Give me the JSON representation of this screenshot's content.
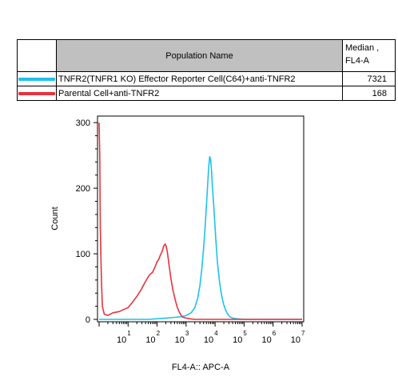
{
  "legend": {
    "header_name": "Population Name",
    "header_median_line1": "Median ,",
    "header_median_line2": "FL4-A",
    "rows": [
      {
        "name": "TNFR2(TNFR1 KO) Effector Reporter Cell(C64)+anti-TNFR2",
        "median": "7321",
        "color": "#1ec1ea"
      },
      {
        "name": "Parental Cell+anti-TNFR2",
        "median": "168",
        "color": "#e8323c"
      }
    ]
  },
  "chart_data": {
    "type": "line",
    "xlabel": "FL4-A:: APC-A",
    "ylabel": "Count",
    "x_scale": "log",
    "xlim": [
      1,
      10000000
    ],
    "ylim": [
      0,
      310
    ],
    "x_tick_labels": [
      {
        "base": "10",
        "exp": "1"
      },
      {
        "base": "10",
        "exp": "2"
      },
      {
        "base": "10",
        "exp": "3"
      },
      {
        "base": "10",
        "exp": "4"
      },
      {
        "base": "10",
        "exp": "5"
      },
      {
        "base": "10",
        "exp": "6"
      },
      {
        "base": "10",
        "exp": "7"
      }
    ],
    "y_ticks": [
      0,
      100,
      200,
      300
    ],
    "series": [
      {
        "name": "TNFR2(TNFR1 KO) Effector Reporter Cell(C64)+anti-TNFR2",
        "color": "#1ec1ea",
        "x": [
          1,
          50,
          200,
          400,
          700,
          1000,
          1500,
          2000,
          2500,
          3000,
          3500,
          4000,
          4500,
          5000,
          5500,
          6000,
          6500,
          7000,
          7500,
          8000,
          9000,
          10000,
          11000,
          12000,
          14000,
          16000,
          18000,
          20000,
          23000,
          27000,
          32000,
          40000,
          55000,
          100000,
          10000000
        ],
        "y": [
          0,
          0,
          2,
          3,
          4,
          6,
          10,
          18,
          32,
          52,
          78,
          108,
          140,
          172,
          202,
          232,
          248,
          244,
          228,
          206,
          172,
          140,
          112,
          88,
          60,
          42,
          30,
          22,
          14,
          8,
          4,
          2,
          1,
          0,
          0
        ]
      },
      {
        "name": "Parental Cell+anti-TNFR2",
        "color": "#e8323c",
        "x": [
          1,
          1.05,
          1.1,
          1.2,
          1.3,
          1.5,
          2,
          3,
          5,
          7,
          10,
          14,
          20,
          28,
          40,
          55,
          70,
          85,
          100,
          115,
          130,
          150,
          170,
          190,
          210,
          230,
          260,
          300,
          350,
          420,
          500,
          600,
          700,
          800,
          1000,
          1300,
          2000,
          100000,
          10000000
        ],
        "y": [
          300,
          250,
          140,
          60,
          20,
          8,
          6,
          10,
          12,
          15,
          18,
          26,
          35,
          45,
          58,
          68,
          72,
          80,
          88,
          92,
          98,
          104,
          112,
          115,
          110,
          100,
          82,
          62,
          45,
          30,
          18,
          10,
          5,
          3,
          2,
          1,
          0,
          0,
          0
        ]
      }
    ]
  }
}
